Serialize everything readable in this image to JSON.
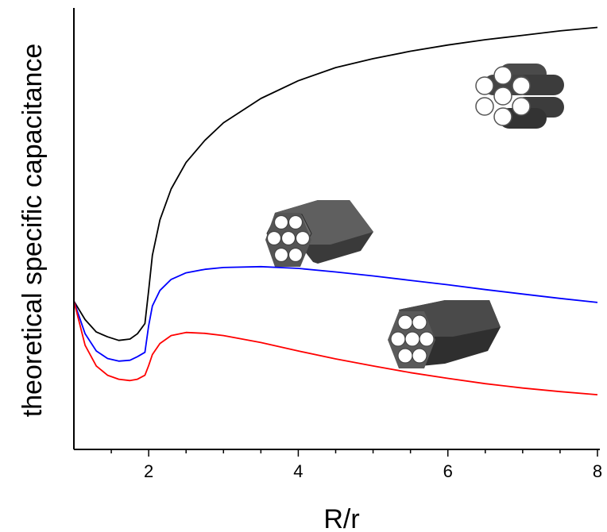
{
  "chart_data": {
    "type": "line",
    "xlabel": "R/r",
    "ylabel": "theoretical specific capacitance",
    "xlim": [
      1,
      8
    ],
    "ylim": [
      0,
      100
    ],
    "x_ticks": [
      2,
      4,
      6,
      8
    ],
    "x_tick_labels": [
      "2",
      "4",
      "6",
      "8"
    ],
    "y_tick_labels_shown": false,
    "grid": false,
    "legend": "none",
    "colors": {
      "series_black": "#000000",
      "series_blue": "#0000ff",
      "series_red": "#ff0000",
      "icon_dark": "#3a3a3a",
      "icon_face": "#6a6a6a"
    },
    "series": [
      {
        "color": "#000000",
        "icon": "cylinder-bundle-icon",
        "x": [
          1.0,
          1.15,
          1.3,
          1.45,
          1.6,
          1.75,
          1.85,
          1.95,
          2.0,
          2.05,
          2.15,
          2.3,
          2.5,
          2.75,
          3.0,
          3.5,
          4.0,
          4.5,
          5.0,
          5.5,
          6.0,
          6.5,
          7.0,
          7.5,
          8.0
        ],
        "y": [
          33.6,
          29.4,
          26.6,
          25.5,
          24.7,
          25.0,
          26.2,
          28.5,
          36.0,
          44.0,
          52.0,
          59.0,
          65.0,
          70.0,
          74.0,
          79.5,
          83.5,
          86.5,
          88.5,
          90.2,
          91.6,
          92.8,
          93.8,
          94.8,
          95.6
        ]
      },
      {
        "color": "#0000ff",
        "icon": "hexagonal-prism-icon",
        "x": [
          1.0,
          1.15,
          1.3,
          1.45,
          1.6,
          1.75,
          1.85,
          1.95,
          2.0,
          2.05,
          2.15,
          2.3,
          2.5,
          2.75,
          3.0,
          3.5,
          4.0,
          4.5,
          5.0,
          5.5,
          6.0,
          6.5,
          7.0,
          7.5,
          8.0
        ],
        "y": [
          33.6,
          26.2,
          22.3,
          20.6,
          20.0,
          20.2,
          21.0,
          22.0,
          28.0,
          32.5,
          36.0,
          38.5,
          40.0,
          40.8,
          41.2,
          41.4,
          41.0,
          40.2,
          39.3,
          38.3,
          37.3,
          36.2,
          35.2,
          34.2,
          33.3
        ]
      },
      {
        "color": "#ff0000",
        "icon": "hexagonal-prism-icon",
        "x": [
          1.0,
          1.15,
          1.3,
          1.45,
          1.6,
          1.75,
          1.85,
          1.95,
          2.0,
          2.05,
          2.15,
          2.3,
          2.5,
          2.75,
          3.0,
          3.5,
          4.0,
          4.5,
          5.0,
          5.5,
          6.0,
          6.5,
          7.0,
          7.5,
          8.0
        ],
        "y": [
          33.6,
          23.6,
          18.9,
          16.8,
          15.9,
          15.6,
          15.9,
          16.8,
          19.0,
          21.5,
          24.0,
          25.8,
          26.5,
          26.3,
          25.8,
          24.2,
          22.3,
          20.5,
          18.9,
          17.4,
          16.1,
          14.9,
          13.9,
          13.1,
          12.4
        ]
      }
    ]
  }
}
